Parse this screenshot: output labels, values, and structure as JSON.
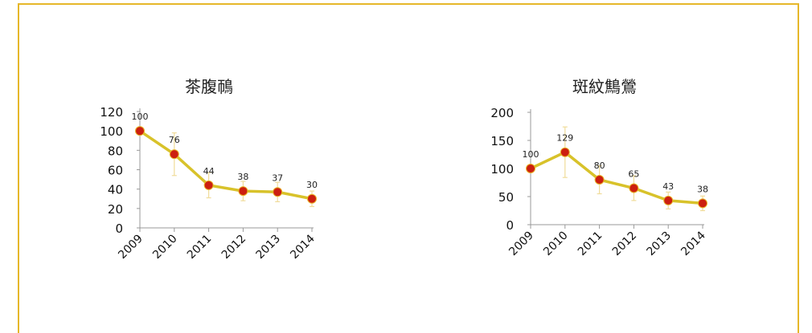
{
  "frame_color": "#e6b72a",
  "line_color": "#d8c22a",
  "marker_color": "#cc1f10",
  "errorbar_color": "#f0dc9a",
  "chart_data": [
    {
      "type": "line",
      "title": "茶腹鳾",
      "categories": [
        "2009",
        "2010",
        "2011",
        "2012",
        "2013",
        "2014"
      ],
      "series": [
        {
          "values": [
            100,
            76,
            44,
            38,
            37,
            30
          ]
        }
      ],
      "error": [
        [
          0,
          0
        ],
        [
          22,
          22
        ],
        [
          13,
          13
        ],
        [
          10,
          10
        ],
        [
          10,
          10
        ],
        [
          8,
          8
        ]
      ],
      "data_labels": [
        "100",
        "76",
        "44",
        "38",
        "37",
        "30"
      ],
      "yticks": [
        "0",
        "20",
        "40",
        "60",
        "80",
        "100",
        "120"
      ],
      "ylim": [
        0,
        120
      ],
      "grid": false,
      "legend": "none"
    },
    {
      "type": "line",
      "title": "斑紋鷦鶯",
      "categories": [
        "2009",
        "2010",
        "2011",
        "2012",
        "2013",
        "2014"
      ],
      "series": [
        {
          "values": [
            100,
            129,
            80,
            65,
            43,
            38
          ]
        }
      ],
      "error": [
        [
          0,
          0
        ],
        [
          45,
          45
        ],
        [
          25,
          25
        ],
        [
          22,
          22
        ],
        [
          15,
          15
        ],
        [
          13,
          13
        ]
      ],
      "data_labels": [
        "100",
        "129",
        "80",
        "65",
        "43",
        "38"
      ],
      "yticks": [
        "0",
        "50",
        "100",
        "150",
        "200"
      ],
      "ylim": [
        0,
        200
      ],
      "grid": false,
      "legend": "none"
    }
  ]
}
